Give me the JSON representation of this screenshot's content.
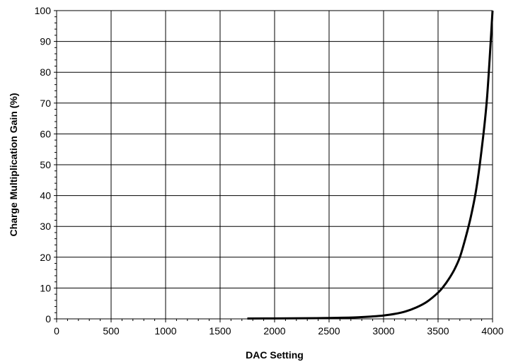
{
  "chart_data": {
    "type": "line",
    "title": "",
    "xlabel": "DAC Setting",
    "ylabel": "Charge Multiplication Gain (%)",
    "xlim": [
      0,
      4000
    ],
    "ylim": [
      0,
      100
    ],
    "x_ticks": [
      0,
      500,
      1000,
      1500,
      2000,
      2500,
      3000,
      3500,
      4000
    ],
    "y_ticks": [
      0,
      10,
      20,
      30,
      40,
      50,
      60,
      70,
      80,
      90,
      100
    ],
    "x_tick_labels": [
      "0",
      "500",
      "1000",
      "1500",
      "2000",
      "2500",
      "3000",
      "3500",
      "4000"
    ],
    "y_tick_labels": [
      "0",
      "10",
      "20",
      "30",
      "40",
      "50",
      "60",
      "70",
      "80",
      "90",
      "100"
    ],
    "grid": true,
    "legend": "none",
    "series": [
      {
        "color": "#000000",
        "x": [
          1750,
          2000,
          2250,
          2500,
          2750,
          2900,
          3000,
          3100,
          3200,
          3300,
          3400,
          3500,
          3550,
          3600,
          3650,
          3700,
          3750,
          3800,
          3850,
          3900,
          3950,
          4000
        ],
        "y": [
          0.1,
          0.15,
          0.2,
          0.3,
          0.5,
          0.8,
          1.1,
          1.6,
          2.4,
          3.7,
          5.6,
          8.5,
          10.5,
          13,
          16,
          20,
          26,
          33,
          42,
          55,
          72,
          100
        ]
      }
    ]
  }
}
